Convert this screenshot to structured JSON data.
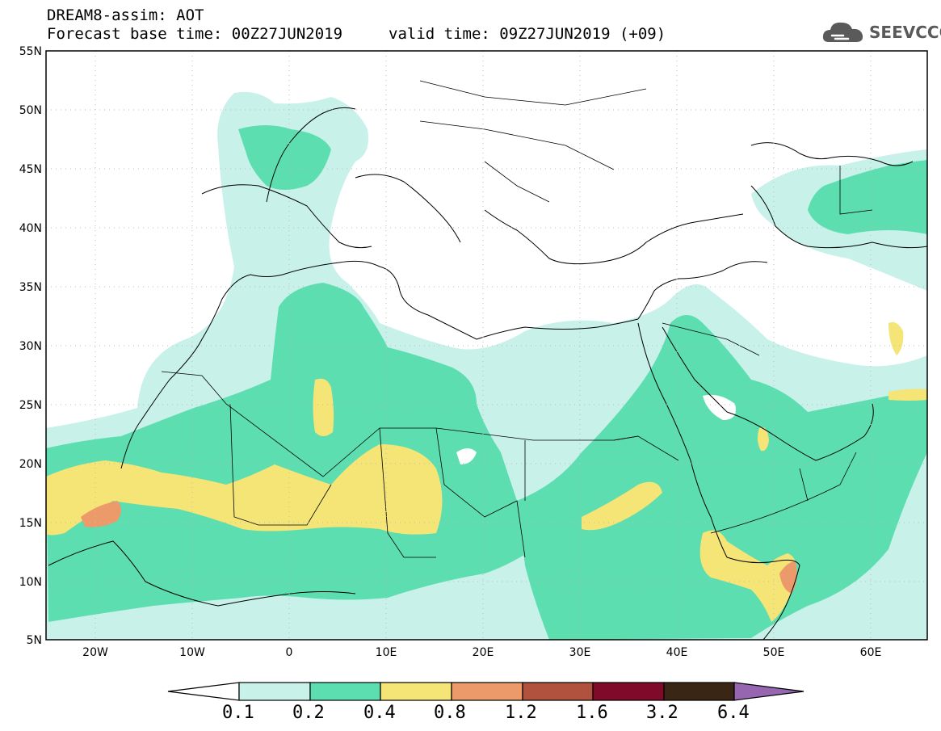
{
  "header": {
    "line1": "DREAM8-assim: AOT",
    "line2": "Forecast base time: 00Z27JUN2019",
    "valid": "valid time: 09Z27JUN2019 (+09)"
  },
  "logo": {
    "text": "SEEVCCC",
    "icon": "cloud-icon"
  },
  "axes": {
    "lat_labels": [
      "55N",
      "50N",
      "45N",
      "40N",
      "35N",
      "30N",
      "25N",
      "20N",
      "15N",
      "10N",
      "5N"
    ],
    "lon_labels": [
      "20W",
      "10W",
      "0",
      "10E",
      "20E",
      "30E",
      "40E",
      "50E",
      "60E"
    ],
    "lat_range": [
      5,
      55
    ],
    "lon_range": [
      -25,
      65
    ]
  },
  "colorbar": {
    "labels": [
      "0.1",
      "0.2",
      "0.4",
      "0.8",
      "1.2",
      "1.6",
      "3.2",
      "6.4"
    ],
    "colors": [
      "#ffffff",
      "#c7f1e9",
      "#5ddeb0",
      "#f5e476",
      "#ec9a6a",
      "#b0523d",
      "#7f0a2a",
      "#3a2615",
      "#9666b0"
    ]
  },
  "chart_data": {
    "type": "heatmap",
    "variable": "AOT",
    "lon_range": [
      -25,
      65
    ],
    "lat_range": [
      5,
      55
    ],
    "levels": [
      0.1,
      0.2,
      0.4,
      0.8,
      1.2,
      1.6,
      3.2,
      6.4
    ]
  }
}
